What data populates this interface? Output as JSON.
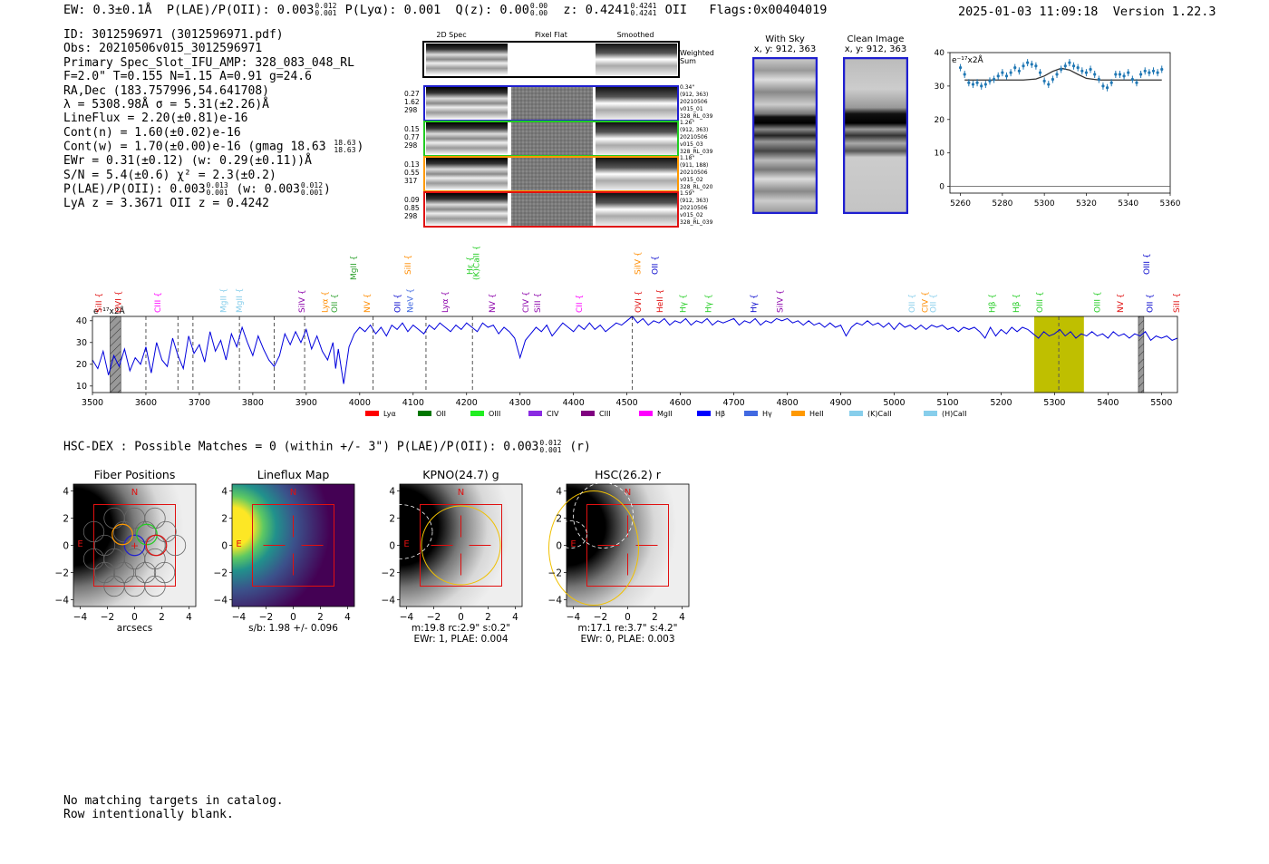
{
  "header": {
    "ew": "EW: 0.3±0.1Å",
    "plae_label": "P(LAE)/P(OII): 0.003",
    "plae_hi": "0.012",
    "plae_lo": "0.001",
    "plya": "P(Lyα): 0.001",
    "qz_label": "Q(z): 0.00",
    "qz_hi": "0.00",
    "qz_lo": "0.00",
    "z_label": "z: 0.4241",
    "z_hi": "0.4241",
    "z_lo": "0.4241",
    "z_line": "OII",
    "flags": "Flags:0x00404019",
    "datetime": "2025-01-03 11:09:18",
    "version": "Version 1.22.3"
  },
  "info": {
    "id": "ID: 3012596971 (3012596971.pdf)",
    "obs": "Obs: 20210506v015_3012596971",
    "spec": "Primary Spec_Slot_IFU_AMP: 328_083_048_RL",
    "fit": "F=2.0\"  T=0.155  N=1.15  A=0.91  g=24.6",
    "radec": "RA,Dec (183.757996,54.641708)",
    "lambda": "λ = 5308.98Å  σ = 5.31(±2.26)Å",
    "lineflux": "LineFlux = 2.20(±0.81)e-16",
    "contn": "Cont(n) = 1.60(±0.02)e-16",
    "contw": "Cont(w) = 1.70(±0.00)e-16 (gmag 18.63",
    "gmag_hi": "18.63",
    "gmag_lo": "18.63",
    "contw_end": ")",
    "ewr": "EWr = 0.31(±0.12) (w: 0.29(±0.11))Å",
    "sn": "S/N = 5.4(±0.6)  χ² = 2.3(±0.2)",
    "plae": "P(LAE)/P(OII): 0.003",
    "plae_hi": "0.013",
    "plae_lo": "0.001",
    "plae_w": "(w: 0.003",
    "plae_w_hi": "0.012",
    "plae_w_lo": "0.001",
    "plae_end": ")",
    "lyaz": "LyA z = 3.3671  OII z = 0.4242"
  },
  "cutouts": {
    "col_2d": "2D Spec",
    "col_flat": "Pixel Flat",
    "col_smooth": "Smoothed",
    "weighted": "Weighted",
    "sum": "Sum",
    "rows": [
      {
        "color": "#1f1fd0",
        "vals": [
          "0.27",
          "1.62",
          "298"
        ],
        "meta": [
          "0.34\"",
          "(912, 363)",
          "20210506",
          "v015_01",
          "328_RL_039"
        ]
      },
      {
        "color": "#22cc22",
        "vals": [
          "0.15",
          "0.77",
          "298"
        ],
        "meta": [
          "1.26\"",
          "(912, 363)",
          "20210506",
          "v015_03",
          "328_RL_039"
        ]
      },
      {
        "color": "#ff9900",
        "vals": [
          "0.13",
          "0.55",
          "317"
        ],
        "meta": [
          "1.18\"",
          "(911, 188)",
          "20210506",
          "v015_02",
          "328_RL_020"
        ]
      },
      {
        "color": "#e01010",
        "vals": [
          "0.09",
          "0.85",
          "298"
        ],
        "meta": [
          "1.59\"",
          "(912, 363)",
          "20210506",
          "v015_02",
          "328_RL_039"
        ]
      }
    ]
  },
  "withsky": {
    "title": "With Sky",
    "xy": "x, y: 912, 363"
  },
  "clean": {
    "title": "Clean Image",
    "xy": "x, y: 912, 363"
  },
  "fit_chart": {
    "type": "scatter",
    "unit_label": "e⁻¹⁷x2Å",
    "xlim": [
      5255,
      5360
    ],
    "ylim": [
      -2,
      40
    ],
    "xticks": [
      "5260",
      "5280",
      "5300",
      "5320",
      "5340",
      "5360"
    ],
    "yticks": [
      "0",
      "10",
      "20",
      "30",
      "40"
    ],
    "point_color": "#1f77b4",
    "x": [
      5260,
      5262,
      5264,
      5266,
      5268,
      5270,
      5272,
      5274,
      5276,
      5278,
      5280,
      5282,
      5284,
      5286,
      5288,
      5290,
      5292,
      5294,
      5296,
      5298,
      5300,
      5302,
      5304,
      5306,
      5308,
      5310,
      5312,
      5314,
      5316,
      5318,
      5320,
      5322,
      5324,
      5326,
      5328,
      5330,
      5332,
      5334,
      5336,
      5338,
      5340,
      5342,
      5344,
      5346,
      5348,
      5350,
      5352,
      5354,
      5356
    ],
    "y": [
      35.5,
      33.5,
      31,
      30.5,
      31,
      30,
      30.5,
      31.5,
      32,
      33,
      34,
      33,
      34,
      35.5,
      34.5,
      36,
      37,
      36.5,
      36,
      34,
      31.5,
      30.5,
      32,
      33.5,
      35,
      36,
      37,
      36,
      35.5,
      34.5,
      34,
      35,
      33.5,
      32,
      30,
      29.5,
      31,
      33.5,
      33.5,
      33,
      34,
      32,
      31,
      33.5,
      34.5,
      34,
      34.5,
      34,
      35
    ],
    "model_x": [
      5262,
      5290,
      5296,
      5300,
      5304,
      5308,
      5312,
      5316,
      5320,
      5326,
      5356
    ],
    "model_y": [
      31.8,
      31.8,
      32.1,
      33.0,
      34.4,
      35.3,
      34.8,
      33.5,
      32.3,
      31.8,
      31.8
    ]
  },
  "spectrum": {
    "type": "line",
    "unit_label": "e⁻¹⁷x2Å",
    "xlim": [
      3500,
      5530
    ],
    "ylim": [
      7,
      42
    ],
    "xticks": [
      "3500",
      "3600",
      "3700",
      "3800",
      "3900",
      "4000",
      "4100",
      "4200",
      "4300",
      "4400",
      "4500",
      "4600",
      "4700",
      "4800",
      "4900",
      "5000",
      "5100",
      "5200",
      "5300",
      "5400",
      "5500"
    ],
    "yticks": [
      "10",
      "20",
      "30",
      "40"
    ],
    "line_color": "#0000dd",
    "points": [
      [
        3500,
        22
      ],
      [
        3510,
        18
      ],
      [
        3520,
        26
      ],
      [
        3530,
        15
      ],
      [
        3540,
        24
      ],
      [
        3550,
        19
      ],
      [
        3560,
        27
      ],
      [
        3570,
        17
      ],
      [
        3580,
        23
      ],
      [
        3590,
        20
      ],
      [
        3600,
        28
      ],
      [
        3610,
        16
      ],
      [
        3620,
        30
      ],
      [
        3630,
        22
      ],
      [
        3640,
        19
      ],
      [
        3650,
        32
      ],
      [
        3660,
        24
      ],
      [
        3670,
        18
      ],
      [
        3680,
        33
      ],
      [
        3690,
        25
      ],
      [
        3700,
        29
      ],
      [
        3710,
        21
      ],
      [
        3720,
        35
      ],
      [
        3730,
        26
      ],
      [
        3740,
        31
      ],
      [
        3750,
        22
      ],
      [
        3760,
        34
      ],
      [
        3770,
        28
      ],
      [
        3780,
        37
      ],
      [
        3790,
        30
      ],
      [
        3800,
        24
      ],
      [
        3810,
        33
      ],
      [
        3820,
        27
      ],
      [
        3830,
        22
      ],
      [
        3840,
        19
      ],
      [
        3850,
        24
      ],
      [
        3860,
        34
      ],
      [
        3870,
        29
      ],
      [
        3880,
        35
      ],
      [
        3890,
        30
      ],
      [
        3900,
        36
      ],
      [
        3910,
        27
      ],
      [
        3920,
        33
      ],
      [
        3930,
        26
      ],
      [
        3940,
        22
      ],
      [
        3950,
        30
      ],
      [
        3955,
        18
      ],
      [
        3960,
        27
      ],
      [
        3970,
        11
      ],
      [
        3980,
        28
      ],
      [
        3990,
        34
      ],
      [
        4000,
        37
      ],
      [
        4010,
        35
      ],
      [
        4020,
        38
      ],
      [
        4030,
        34
      ],
      [
        4040,
        37
      ],
      [
        4050,
        33
      ],
      [
        4060,
        38
      ],
      [
        4070,
        36
      ],
      [
        4080,
        39
      ],
      [
        4090,
        35
      ],
      [
        4100,
        38
      ],
      [
        4110,
        36
      ],
      [
        4120,
        34
      ],
      [
        4130,
        38
      ],
      [
        4140,
        36
      ],
      [
        4150,
        39
      ],
      [
        4160,
        37
      ],
      [
        4170,
        35
      ],
      [
        4180,
        38
      ],
      [
        4190,
        36
      ],
      [
        4200,
        39
      ],
      [
        4210,
        37
      ],
      [
        4220,
        35
      ],
      [
        4230,
        39
      ],
      [
        4240,
        37
      ],
      [
        4250,
        38
      ],
      [
        4260,
        34
      ],
      [
        4270,
        37
      ],
      [
        4280,
        35
      ],
      [
        4290,
        32
      ],
      [
        4300,
        23
      ],
      [
        4310,
        31
      ],
      [
        4320,
        34
      ],
      [
        4330,
        37
      ],
      [
        4340,
        35
      ],
      [
        4350,
        38
      ],
      [
        4360,
        33
      ],
      [
        4370,
        36
      ],
      [
        4380,
        39
      ],
      [
        4390,
        37
      ],
      [
        4400,
        35
      ],
      [
        4410,
        38
      ],
      [
        4420,
        36
      ],
      [
        4430,
        39
      ],
      [
        4440,
        36
      ],
      [
        4450,
        38
      ],
      [
        4460,
        35
      ],
      [
        4470,
        37
      ],
      [
        4480,
        39
      ],
      [
        4490,
        38
      ],
      [
        4500,
        40
      ],
      [
        4510,
        42
      ],
      [
        4520,
        39
      ],
      [
        4530,
        41
      ],
      [
        4540,
        38
      ],
      [
        4550,
        40
      ],
      [
        4560,
        39
      ],
      [
        4570,
        41
      ],
      [
        4580,
        38
      ],
      [
        4590,
        40
      ],
      [
        4600,
        39
      ],
      [
        4610,
        41
      ],
      [
        4620,
        38
      ],
      [
        4630,
        40
      ],
      [
        4640,
        39
      ],
      [
        4650,
        41
      ],
      [
        4660,
        38
      ],
      [
        4670,
        40
      ],
      [
        4680,
        39
      ],
      [
        4690,
        40
      ],
      [
        4700,
        41
      ],
      [
        4710,
        38
      ],
      [
        4720,
        40
      ],
      [
        4730,
        39
      ],
      [
        4740,
        41
      ],
      [
        4750,
        38
      ],
      [
        4760,
        40
      ],
      [
        4770,
        39
      ],
      [
        4780,
        41
      ],
      [
        4790,
        40
      ],
      [
        4800,
        41
      ],
      [
        4810,
        39
      ],
      [
        4820,
        40
      ],
      [
        4830,
        38
      ],
      [
        4840,
        40
      ],
      [
        4850,
        38
      ],
      [
        4860,
        39
      ],
      [
        4870,
        37
      ],
      [
        4880,
        39
      ],
      [
        4890,
        37
      ],
      [
        4900,
        38
      ],
      [
        4910,
        33
      ],
      [
        4920,
        37
      ],
      [
        4930,
        39
      ],
      [
        4940,
        38
      ],
      [
        4950,
        40
      ],
      [
        4960,
        38
      ],
      [
        4970,
        39
      ],
      [
        4980,
        37
      ],
      [
        4990,
        39
      ],
      [
        5000,
        36
      ],
      [
        5010,
        39
      ],
      [
        5020,
        37
      ],
      [
        5030,
        38
      ],
      [
        5040,
        36
      ],
      [
        5050,
        38
      ],
      [
        5060,
        36
      ],
      [
        5070,
        38
      ],
      [
        5080,
        37
      ],
      [
        5090,
        38
      ],
      [
        5100,
        36
      ],
      [
        5110,
        37
      ],
      [
        5120,
        35
      ],
      [
        5130,
        37
      ],
      [
        5140,
        36
      ],
      [
        5150,
        37
      ],
      [
        5160,
        35
      ],
      [
        5170,
        32
      ],
      [
        5180,
        37
      ],
      [
        5190,
        33
      ],
      [
        5200,
        36
      ],
      [
        5210,
        34
      ],
      [
        5220,
        37
      ],
      [
        5230,
        35
      ],
      [
        5240,
        37
      ],
      [
        5250,
        36
      ],
      [
        5260,
        34
      ],
      [
        5270,
        32
      ],
      [
        5280,
        35
      ],
      [
        5290,
        33
      ],
      [
        5300,
        34
      ],
      [
        5310,
        36
      ],
      [
        5320,
        33
      ],
      [
        5330,
        35
      ],
      [
        5340,
        32
      ],
      [
        5350,
        34
      ],
      [
        5360,
        33
      ],
      [
        5370,
        35
      ],
      [
        5380,
        33
      ],
      [
        5390,
        34
      ],
      [
        5400,
        32
      ],
      [
        5410,
        35
      ],
      [
        5420,
        33
      ],
      [
        5430,
        34
      ],
      [
        5440,
        32
      ],
      [
        5450,
        34
      ],
      [
        5460,
        33
      ],
      [
        5470,
        35
      ],
      [
        5480,
        31
      ],
      [
        5490,
        33
      ],
      [
        5500,
        32
      ],
      [
        5510,
        33
      ],
      [
        5520,
        31
      ],
      [
        5530,
        32
      ]
    ],
    "dashed_lines": [
      3600,
      3660,
      3688,
      3775,
      3840,
      3897,
      4025,
      4124,
      4211,
      4510,
      5308
    ],
    "hatched_bands": [
      [
        3533,
        3553
      ],
      [
        5457,
        5467
      ]
    ],
    "highlight_band": [
      5262,
      5355
    ],
    "highlight_color": "#bfbf00",
    "line_labels": [
      {
        "text": "SiII",
        "x": 3512,
        "color": "#e01010",
        "row": 0
      },
      {
        "text": "OVI",
        "x": 3548,
        "color": "#e01010",
        "row": 0
      },
      {
        "text": "CIII",
        "x": 3622,
        "color": "#ff00ff",
        "row": 0
      },
      {
        "text": "MgII",
        "x": 3745,
        "color": "#87ceeb",
        "row": 0
      },
      {
        "text": "MgII",
        "x": 3775,
        "color": "#87ceeb",
        "row": 0
      },
      {
        "text": "SiIV",
        "x": 3892,
        "color": "#8b00aa",
        "row": 0
      },
      {
        "text": "Lyα",
        "x": 3935,
        "color": "#ff8c00",
        "row": 0
      },
      {
        "text": "OII",
        "x": 3953,
        "color": "#2ca02c",
        "row": 0
      },
      {
        "text": "MgII",
        "x": 3988,
        "color": "#2ca02c",
        "row": 1
      },
      {
        "text": "NV",
        "x": 4014,
        "color": "#ff8c00",
        "row": 0
      },
      {
        "text": "OII",
        "x": 4071,
        "color": "#0000cc",
        "row": 0
      },
      {
        "text": "NeV",
        "x": 4094,
        "color": "#4169e1",
        "row": 0
      },
      {
        "text": "SiII",
        "x": 4090,
        "color": "#ff8c00",
        "row": 2
      },
      {
        "text": "Lyα",
        "x": 4160,
        "color": "#8b00aa",
        "row": 0
      },
      {
        "text": "Hε",
        "x": 4206,
        "color": "#22cc22",
        "row": 2
      },
      {
        "text": "(K)CaII",
        "x": 4218,
        "color": "#22cc22",
        "row": 1
      },
      {
        "text": "NV",
        "x": 4248,
        "color": "#8b00aa",
        "row": 0
      },
      {
        "text": "CIV",
        "x": 4311,
        "color": "#8b00aa",
        "row": 0
      },
      {
        "text": "SiII",
        "x": 4333,
        "color": "#8b00aa",
        "row": 0
      },
      {
        "text": "CII",
        "x": 4411,
        "color": "#ff00ff",
        "row": 0
      },
      {
        "text": "SiIV",
        "x": 4520,
        "color": "#ff8c00",
        "row": 2
      },
      {
        "text": "OVI",
        "x": 4521,
        "color": "#e01010",
        "row": 0
      },
      {
        "text": "OII",
        "x": 4552,
        "color": "#0000cc",
        "row": 2
      },
      {
        "text": "HeII",
        "x": 4562,
        "color": "#e01010",
        "row": 0
      },
      {
        "text": "Hγ",
        "x": 4605,
        "color": "#22cc22",
        "row": 0
      },
      {
        "text": "Hγ",
        "x": 4652,
        "color": "#22cc22",
        "row": 0
      },
      {
        "text": "Hγ",
        "x": 4737,
        "color": "#0000cc",
        "row": 0
      },
      {
        "text": "SiIV",
        "x": 4786,
        "color": "#8b00aa",
        "row": 0
      },
      {
        "text": "OII",
        "x": 5033,
        "color": "#87ceeb",
        "row": 0
      },
      {
        "text": "CIV",
        "x": 5058,
        "color": "#ff8c00",
        "row": 0
      },
      {
        "text": "OII",
        "x": 5073,
        "color": "#87ceeb",
        "row": 0
      },
      {
        "text": "Hβ",
        "x": 5183,
        "color": "#22cc22",
        "row": 0
      },
      {
        "text": "Hβ",
        "x": 5228,
        "color": "#22cc22",
        "row": 0
      },
      {
        "text": "OIII",
        "x": 5272,
        "color": "#22cc22",
        "row": 0
      },
      {
        "text": "OIII",
        "x": 5380,
        "color": "#22cc22",
        "row": 0
      },
      {
        "text": "NV",
        "x": 5423,
        "color": "#e01010",
        "row": 0
      },
      {
        "text": "OIII",
        "x": 5472,
        "color": "#0000cc",
        "row": 2
      },
      {
        "text": "OII",
        "x": 5478,
        "color": "#0000cc",
        "row": 0
      },
      {
        "text": "SiII",
        "x": 5528,
        "color": "#e01010",
        "row": 0
      }
    ],
    "legend": [
      {
        "text": "Lyα",
        "color": "#ff0000"
      },
      {
        "text": "OII",
        "color": "#007700"
      },
      {
        "text": "OIII",
        "color": "#22ee22"
      },
      {
        "text": "CIV",
        "color": "#8a2be2"
      },
      {
        "text": "CIII",
        "color": "#800080"
      },
      {
        "text": "MgII",
        "color": "#ff00ff"
      },
      {
        "text": "Hβ",
        "color": "#0000ff"
      },
      {
        "text": "Hγ",
        "color": "#4169e1"
      },
      {
        "text": "HeII",
        "color": "#ff9900"
      },
      {
        "text": "(K)CaII",
        "color": "#87ceeb"
      },
      {
        "text": "(H)CaII",
        "color": "#87ceeb"
      }
    ]
  },
  "hsc": {
    "title": "HSC-DEX : Possible Matches = 0 (within +/- 3\")  P(LAE)/P(OII): 0.003",
    "hi": "0.012",
    "lo": "0.001",
    "end": "(r)"
  },
  "thumbs": [
    {
      "title": "Fiber Positions",
      "caption1": "arcsecs",
      "caption2": "",
      "caption3": ""
    },
    {
      "title": "Lineflux Map",
      "caption1": "s/b: 1.98 +/- 0.096",
      "caption2": "",
      "caption3": ""
    },
    {
      "title": "KPNO(24.7) g",
      "caption1": "m:19.8 rc:2.9\"  s:0.2\"",
      "caption2": "EWr: 1, PLAE: 0.004",
      "caption3": ""
    },
    {
      "title": "HSC(26.2) r",
      "caption1": "m:17.1  re:3.7\"  s:4.2\"",
      "caption2": "EWr: 0, PLAE: 0.003",
      "caption3": ""
    }
  ],
  "thumb_axes": {
    "ticks": [
      "−4",
      "−2",
      "0",
      "2",
      "4"
    ],
    "north": "N",
    "east": "E"
  },
  "footer": {
    "line1": "No matching targets in catalog.",
    "line2": "Row intentionally blank."
  }
}
